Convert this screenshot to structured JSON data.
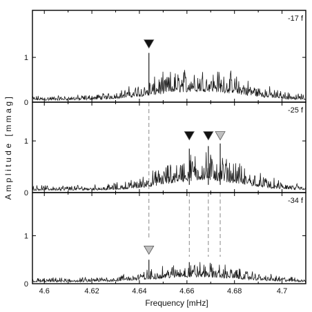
{
  "chart_data": {
    "type": "line",
    "xlabel": "Frequency [mHz]",
    "ylabel": "Amplitude [mmag]",
    "xlim": [
      4.595,
      4.71
    ],
    "x_ticks": [
      4.6,
      4.62,
      4.64,
      4.66,
      4.68,
      4.7
    ],
    "x_tick_labels": [
      "4.6",
      "4.62",
      "4.64",
      "4.66",
      "4.68",
      "4.7"
    ],
    "grid": false,
    "colors": {
      "line": "#1a1a1a",
      "marker_dark": "#111111",
      "marker_light": "#c0c0c0",
      "guide": "#888888"
    },
    "guide_lines": [
      4.644,
      4.661,
      4.669,
      4.674
    ],
    "panels": [
      {
        "label": "-17 f",
        "ylim": [
          0,
          2.05
        ],
        "y_ticks": [
          0,
          1
        ],
        "y_tick_labels": [
          "0",
          "1"
        ],
        "envelope": {
          "center": 4.665,
          "width": 0.019,
          "peak": 0.55,
          "base": 0.12,
          "noise": 0.5
        },
        "spikes": [
          {
            "x": 4.644,
            "y": 1.1
          }
        ],
        "markers": [
          {
            "x": 4.644,
            "y": 1.3,
            "fill": "dark"
          }
        ]
      },
      {
        "label": "-25 f",
        "ylim": [
          0,
          1.75
        ],
        "y_ticks": [
          0,
          1
        ],
        "y_tick_labels": [
          "0",
          "1"
        ],
        "envelope": {
          "center": 4.667,
          "width": 0.016,
          "peak": 0.55,
          "base": 0.12,
          "noise": 0.5
        },
        "spikes": [
          {
            "x": 4.661,
            "y": 0.85
          },
          {
            "x": 4.669,
            "y": 0.9
          },
          {
            "x": 4.674,
            "y": 0.95
          }
        ],
        "markers": [
          {
            "x": 4.661,
            "y": 1.1,
            "fill": "dark"
          },
          {
            "x": 4.669,
            "y": 1.1,
            "fill": "dark"
          },
          {
            "x": 4.674,
            "y": 1.1,
            "fill": "light"
          }
        ]
      },
      {
        "label": "-34 f",
        "ylim": [
          0,
          1.9
        ],
        "y_ticks": [
          0,
          1
        ],
        "y_tick_labels": [
          "0",
          "1"
        ],
        "envelope": {
          "center": 4.664,
          "width": 0.018,
          "peak": 0.28,
          "base": 0.1,
          "noise": 0.5
        },
        "spikes": [
          {
            "x": 4.644,
            "y": 0.5
          },
          {
            "x": 4.661,
            "y": 0.45
          }
        ],
        "markers": [
          {
            "x": 4.644,
            "y": 0.7,
            "fill": "light"
          }
        ]
      }
    ]
  }
}
